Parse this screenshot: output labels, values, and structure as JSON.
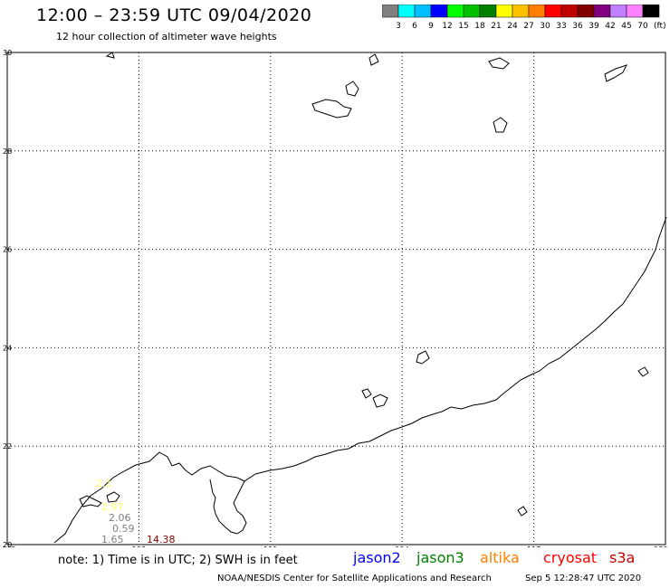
{
  "header": {
    "title": "12:00 – 23:59 UTC 09/04/2020",
    "subtitle": "12 hour collection of altimeter wave heights"
  },
  "colorbar": {
    "colors": [
      "#808080",
      "#00ffff",
      "#00bfff",
      "#0000ff",
      "#00ff00",
      "#00c000",
      "#008000",
      "#ffff00",
      "#ffc000",
      "#ff8000",
      "#ff0000",
      "#c00000",
      "#800000",
      "#800080",
      "#c080ff",
      "#ff80ff",
      "#000000"
    ],
    "ticks": [
      "3",
      "6",
      "9",
      "12",
      "15",
      "18",
      "21",
      "24",
      "27",
      "30",
      "33",
      "36",
      "39",
      "42",
      "45",
      "70"
    ],
    "units": "(ft)"
  },
  "map": {
    "lon_labels": [
      "105",
      "108",
      "111",
      "114",
      "117",
      "120"
    ],
    "lat_labels": [
      "20",
      "22",
      "24",
      "26",
      "28",
      "30"
    ],
    "observations": [
      {
        "text": "2.1",
        "color": "#ffff66"
      },
      {
        "text": "2.97",
        "color": "#ffff66"
      },
      {
        "text": "2.06",
        "color": "#808080"
      },
      {
        "text": "0.59",
        "color": "#808080"
      },
      {
        "text": "1.65",
        "color": "#808080"
      },
      {
        "text": "14.38",
        "color": "#800000"
      }
    ]
  },
  "legend": {
    "note": "note: 1) Time is in UTC; 2) SWH is in feet",
    "satellites": [
      {
        "name": "jason2",
        "color": "#0000ff"
      },
      {
        "name": "jason3",
        "color": "#008000"
      },
      {
        "name": "altika",
        "color": "#ff8000"
      },
      {
        "name": "cryosat",
        "color": "#ff0000"
      },
      {
        "name": "s3a",
        "color": "#c00000"
      }
    ]
  },
  "footer": {
    "credit": "NOAA/NESDIS Center for Satellite Applications and Research",
    "timestamp": "Sep  5 12:28:47 UTC 2020"
  }
}
